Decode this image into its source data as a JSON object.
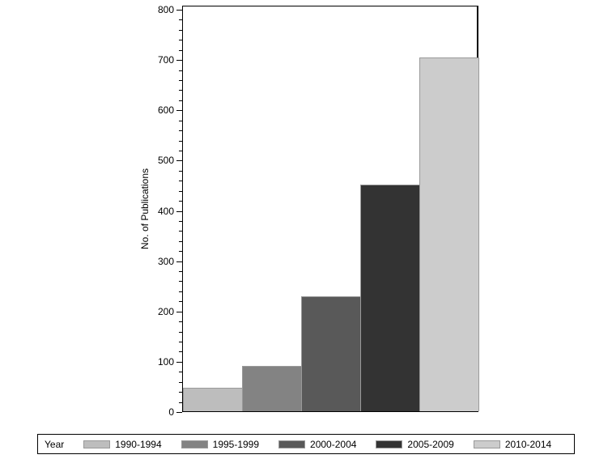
{
  "chart_data": {
    "type": "bar",
    "title": "",
    "xlabel": "",
    "ylabel": "No. of Publications",
    "ylim": [
      0,
      800
    ],
    "yticks": [
      0,
      100,
      200,
      300,
      400,
      500,
      600,
      700,
      800
    ],
    "grid": false,
    "legend_position": "bottom",
    "legend_title": "Year",
    "categories": [
      "1990-1994",
      "1995-1999",
      "2000-2004",
      "2005-2009",
      "2010-2014"
    ],
    "values": [
      47,
      90,
      229,
      451,
      704
    ],
    "colors": [
      "#bdbdbd",
      "#838383",
      "#595959",
      "#333333",
      "#cccccc"
    ]
  },
  "axis": {
    "ylabel": "No. of Publications"
  },
  "legend": {
    "title": "Year",
    "items": [
      {
        "label": "1990-1994",
        "color": "#bdbdbd"
      },
      {
        "label": "1995-1999",
        "color": "#838383"
      },
      {
        "label": "2000-2004",
        "color": "#595959"
      },
      {
        "label": "2005-2009",
        "color": "#333333"
      },
      {
        "label": "2010-2014",
        "color": "#cccccc"
      }
    ]
  }
}
